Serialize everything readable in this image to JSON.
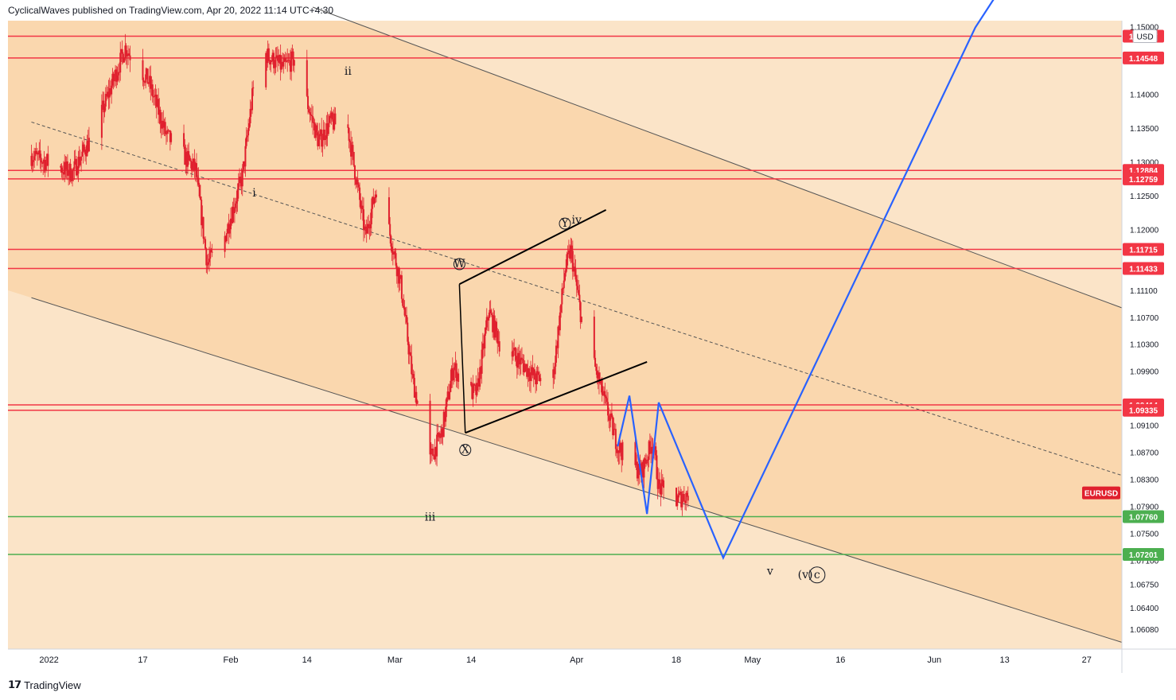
{
  "header": {
    "publisher": "CyclicalWaves published on TradingView.com, Apr 20, 2022 11:14 UTC+4:30"
  },
  "footer": {
    "brand": "TradingView",
    "logo": "tradingview-logo-icon"
  },
  "colors": {
    "panel_bg": "#fbe4c8",
    "channel_fill": "#fad7ae",
    "hline_red": "#f23645",
    "hline_green": "#4caf50",
    "path_blue": "#2962ff",
    "candle": "#e0202e"
  },
  "chart_data": {
    "type": "candlestick",
    "symbol": "EURUSD",
    "currency": "USD",
    "y_range": [
      1.058,
      1.151
    ],
    "y_ticks": [
      "1.15000",
      "1.14000",
      "1.13500",
      "1.13000",
      "1.12500",
      "1.12000",
      "1.11100",
      "1.10700",
      "1.10300",
      "1.09900",
      "1.09100",
      "1.08700",
      "1.08300",
      "1.07900",
      "1.07500",
      "1.07100",
      "1.06750",
      "1.06400",
      "1.06080"
    ],
    "x_ticks": [
      {
        "date": "2022-01-01",
        "label": "2022"
      },
      {
        "date": "2022-01-17",
        "label": "17"
      },
      {
        "date": "2022-02-01",
        "label": "Feb"
      },
      {
        "date": "2022-02-14",
        "label": "14"
      },
      {
        "date": "2022-03-01",
        "label": "Mar"
      },
      {
        "date": "2022-03-14",
        "label": "14"
      },
      {
        "date": "2022-04-01",
        "label": "Apr"
      },
      {
        "date": "2022-04-18",
        "label": "18"
      },
      {
        "date": "2022-05-01",
        "label": "May"
      },
      {
        "date": "2022-05-16",
        "label": "16"
      },
      {
        "date": "2022-06-01",
        "label": "Jun"
      },
      {
        "date": "2022-06-13",
        "label": "13"
      },
      {
        "date": "2022-06-27",
        "label": "27"
      }
    ],
    "price_lines": [
      {
        "value": 1.1487,
        "label": "1.14867",
        "color": "red"
      },
      {
        "value": 1.14548,
        "label": "1.14548",
        "color": "red"
      },
      {
        "value": 1.12884,
        "label": "1.12884",
        "color": "red"
      },
      {
        "value": 1.12759,
        "label": "1.12759",
        "color": "red"
      },
      {
        "value": 1.11715,
        "label": "1.11715",
        "color": "red"
      },
      {
        "value": 1.11433,
        "label": "1.11433",
        "color": "red"
      },
      {
        "value": 1.09414,
        "label": "1.09414",
        "color": "red"
      },
      {
        "value": 1.09335,
        "label": "1.09335",
        "color": "red"
      },
      {
        "value": 1.0776,
        "label": "1.07760",
        "color": "green"
      },
      {
        "value": 1.07201,
        "label": "1.07201",
        "color": "green"
      }
    ],
    "current_price_label": "EURUSD",
    "current_price": 1.083,
    "price_path": [
      [
        "2021-12-29",
        1.131
      ],
      [
        "2022-01-05",
        1.1285
      ],
      [
        "2022-01-09",
        1.135
      ],
      [
        "2022-01-14",
        1.147
      ],
      [
        "2022-01-18",
        1.142
      ],
      [
        "2022-01-21",
        1.134
      ],
      [
        "2022-01-26",
        1.129
      ],
      [
        "2022-01-28",
        1.115
      ],
      [
        "2022-01-31",
        1.119
      ],
      [
        "2022-02-03",
        1.128
      ],
      [
        "2022-02-05",
        1.142
      ],
      [
        "2022-02-07",
        1.146
      ],
      [
        "2022-02-10",
        1.144
      ],
      [
        "2022-02-12",
        1.1455
      ],
      [
        "2022-02-14",
        1.139
      ],
      [
        "2022-02-16",
        1.133
      ],
      [
        "2022-02-18",
        1.136
      ],
      [
        "2022-02-21",
        1.135
      ],
      [
        "2022-02-24",
        1.119
      ],
      [
        "2022-02-26",
        1.127
      ],
      [
        "2022-02-28",
        1.12
      ],
      [
        "2022-03-02",
        1.112
      ],
      [
        "2022-03-04",
        1.098
      ],
      [
        "2022-03-07",
        1.086
      ],
      [
        "2022-03-09",
        1.09
      ],
      [
        "2022-03-11",
        1.1
      ],
      [
        "2022-03-13",
        1.096
      ],
      [
        "2022-03-15",
        1.096
      ],
      [
        "2022-03-17",
        1.108
      ],
      [
        "2022-03-19",
        1.103
      ],
      [
        "2022-03-22",
        1.101
      ],
      [
        "2022-03-25",
        1.098
      ],
      [
        "2022-03-28",
        1.0985
      ],
      [
        "2022-03-30",
        1.114
      ],
      [
        "2022-03-31",
        1.117
      ],
      [
        "2022-04-02",
        1.106
      ],
      [
        "2022-04-05",
        1.097
      ],
      [
        "2022-04-08",
        1.088
      ],
      [
        "2022-04-12",
        1.084
      ],
      [
        "2022-04-14",
        1.089
      ],
      [
        "2022-04-15",
        1.082
      ],
      [
        "2022-04-18",
        1.08
      ],
      [
        "2022-04-20",
        1.081
      ]
    ],
    "projection_path": [
      [
        "2022-04-08",
        1.088
      ],
      [
        "2022-04-10",
        1.0955
      ],
      [
        "2022-04-13",
        1.078
      ],
      [
        "2022-04-15",
        1.0945
      ],
      [
        "2022-04-26",
        1.0715
      ],
      [
        "2022-06-08",
        1.15
      ],
      [
        "2022-06-14",
        1.158
      ]
    ],
    "triangle_lines": [
      [
        [
          "2022-03-12",
          1.112
        ],
        [
          "2022-04-06",
          1.123
        ]
      ],
      [
        [
          "2022-03-13",
          1.09
        ],
        [
          "2022-04-13",
          1.1005
        ]
      ]
    ],
    "channel_upper": [
      [
        "2022-02-15",
        1.153
      ],
      [
        "2022-07-03",
        1.1085
      ]
    ],
    "channel_lower": [
      [
        "2021-12-29",
        1.11
      ],
      [
        "2022-07-03",
        1.059
      ]
    ],
    "channel_mid": [
      [
        "2021-12-29",
        1.136
      ],
      [
        "2022-07-03",
        1.0837
      ]
    ],
    "wave_labels": [
      {
        "text": "i",
        "date": "2022-02-05",
        "value": 1.125,
        "circle": false
      },
      {
        "text": "ii",
        "date": "2022-02-21",
        "value": 1.143,
        "circle": false
      },
      {
        "text": "iii",
        "date": "2022-03-07",
        "value": 1.077,
        "circle": false
      },
      {
        "text": "iv",
        "date": "2022-04-01",
        "value": 1.121,
        "circle": false
      },
      {
        "text": "v",
        "date": "2022-05-04",
        "value": 1.069,
        "circle": false
      },
      {
        "text": "(v)",
        "date": "2022-05-10",
        "value": 1.0685,
        "circle": false
      },
      {
        "text": "c",
        "date": "2022-05-12",
        "value": 1.0685,
        "circle": true
      },
      {
        "text": "W",
        "date": "2022-03-12",
        "value": 1.1145,
        "circle": true
      },
      {
        "text": "X",
        "date": "2022-03-13",
        "value": 1.087,
        "circle": true
      },
      {
        "text": "Y",
        "date": "2022-03-30",
        "value": 1.1205,
        "circle": true
      }
    ]
  }
}
